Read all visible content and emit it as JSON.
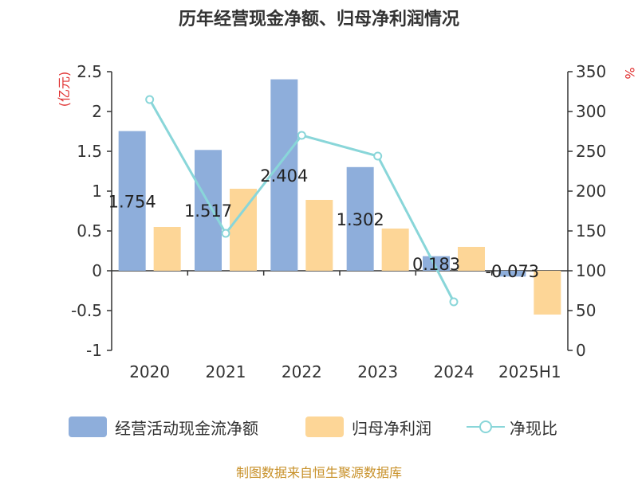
{
  "title": "历年经营现金净额、归母净利润情况",
  "source": "制图数据来自恒生聚源数据库",
  "chart_data": {
    "type": "bar",
    "categories": [
      "2020",
      "2021",
      "2022",
      "2023",
      "2024",
      "2025H1"
    ],
    "series": [
      {
        "name": "经营活动现金流净额",
        "type": "bar",
        "axis": "left",
        "color": "#8eaedb",
        "values": [
          1.754,
          1.517,
          2.404,
          1.302,
          0.183,
          -0.073
        ],
        "data_labels": [
          "1.754",
          "1.517",
          "2.404",
          "1.302",
          "0.183",
          "-0.073"
        ]
      },
      {
        "name": "归母净利润",
        "type": "bar",
        "axis": "left",
        "color": "#fdd697",
        "values": [
          0.55,
          1.03,
          0.89,
          0.53,
          0.3,
          -0.55
        ]
      },
      {
        "name": "净现比",
        "type": "line",
        "axis": "right",
        "color": "#89d6d9",
        "values": [
          315,
          147,
          270,
          244,
          61,
          null
        ]
      }
    ],
    "y_left": {
      "label": "(亿元)",
      "min": -1,
      "max": 2.5,
      "ticks": [
        "2.5",
        "2",
        "1.5",
        "1",
        "0.5",
        "0",
        "-0.5",
        "-1"
      ],
      "tick_values": [
        2.5,
        2,
        1.5,
        1,
        0.5,
        0,
        -0.5,
        -1
      ]
    },
    "y_right": {
      "label": "%",
      "min": 0,
      "max": 350,
      "ticks": [
        "350",
        "300",
        "250",
        "200",
        "150",
        "100",
        "50",
        "0"
      ],
      "tick_values": [
        350,
        300,
        250,
        200,
        150,
        100,
        50,
        0
      ]
    },
    "grid": false,
    "legend_position": "bottom"
  }
}
